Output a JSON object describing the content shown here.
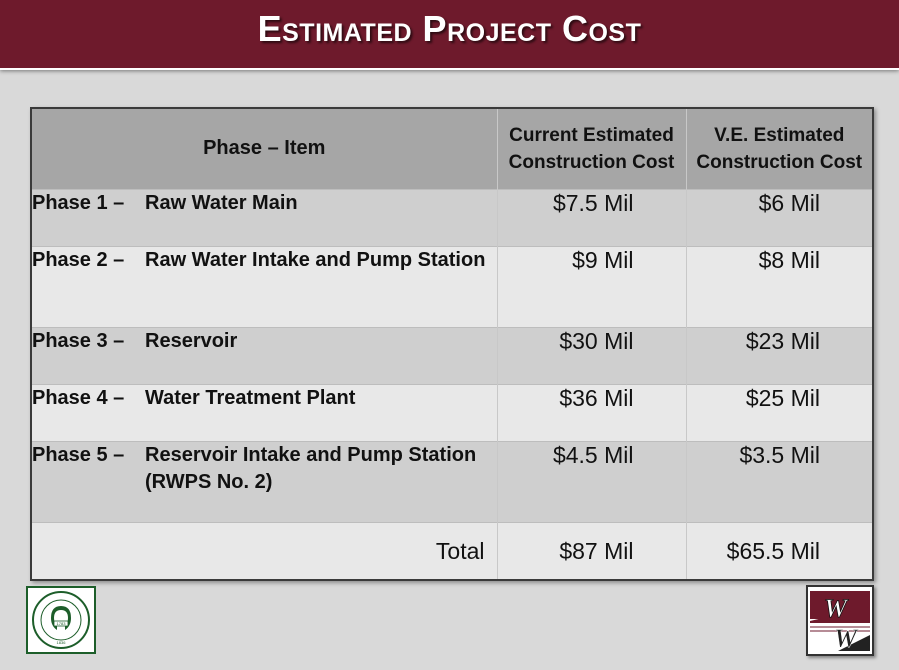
{
  "title": "Estimated Project Cost",
  "table": {
    "headers": {
      "item": "Phase – Item",
      "current_line1": "Current Estimated",
      "current_line2": "Construction Cost",
      "ve_line1": "V.E. Estimated",
      "ve_line2": "Construction Cost"
    },
    "rows": [
      {
        "phase": "Phase 1 –",
        "item": "Raw Water Main",
        "current": "$7.5 Mil",
        "ve": "$6 Mil"
      },
      {
        "phase": "Phase 2 –",
        "item": "Raw Water Intake and Pump Station",
        "current": "$9 Mil",
        "ve": "$8 Mil"
      },
      {
        "phase": "Phase 3 –",
        "item": "Reservoir",
        "current": "$30 Mil",
        "ve": "$23 Mil"
      },
      {
        "phase": "Phase 4 –",
        "item": "Water Treatment Plant",
        "current": "$36 Mil",
        "ve": "$25 Mil"
      },
      {
        "phase": "Phase 5 –",
        "item": "Reservoir Intake and Pump Station (RWPS No. 2)",
        "current": "$4.5 Mil",
        "ve": "$3.5 Mil"
      }
    ],
    "total": {
      "label": "Total",
      "current": "$87 Mil",
      "ve": "$65.5 Mil"
    }
  },
  "logos": {
    "left": {
      "icon": "county-seal-logo",
      "ring_text": "COUNTY OF GREENE • GREENEVILLE • TENNESSEE",
      "year": "1783",
      "bottom": "1836"
    },
    "right": {
      "icon": "ww-logo",
      "letter_top": "W",
      "letter_bottom": "W"
    }
  },
  "colors": {
    "title_bar": "#6e1a2c",
    "background": "#d9d9d9",
    "header_row": "#a6a6a6",
    "seal_green": "#1d5e2a"
  }
}
